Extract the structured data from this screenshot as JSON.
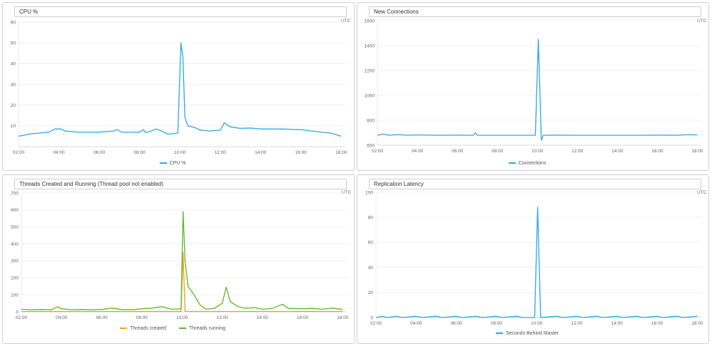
{
  "tz": "UTC",
  "charts": [
    {
      "id": "cpu",
      "title": "CPU %",
      "chart_data": {
        "type": "line",
        "x_ticks": [
          "02:00",
          "04:00",
          "06:00",
          "08:00",
          "10:00",
          "12:00",
          "14:00",
          "16:00",
          "18:00"
        ],
        "y_ticks": [
          "60",
          "50",
          "40",
          "30",
          "20",
          "10"
        ],
        "ylim": [
          0,
          60
        ],
        "xlim": [
          2,
          18.2
        ],
        "series": [
          {
            "name": "CPU %",
            "color": "#2aa8e6",
            "points": [
              [
                2.0,
                5.0
              ],
              [
                2.5,
                6.0
              ],
              [
                3.0,
                6.5
              ],
              [
                3.5,
                7.0
              ],
              [
                3.8,
                8.5
              ],
              [
                4.1,
                8.5
              ],
              [
                4.3,
                7.5
              ],
              [
                5.0,
                7.0
              ],
              [
                6.0,
                7.0
              ],
              [
                6.7,
                7.5
              ],
              [
                6.9,
                8.2
              ],
              [
                7.1,
                7.0
              ],
              [
                8.0,
                7.0
              ],
              [
                8.2,
                8.2
              ],
              [
                8.3,
                6.8
              ],
              [
                8.6,
                7.6
              ],
              [
                8.8,
                8.5
              ],
              [
                9.0,
                8.0
              ],
              [
                9.2,
                7.0
              ],
              [
                9.4,
                6.0
              ],
              [
                9.9,
                6.5
              ],
              [
                10.05,
                50.0
              ],
              [
                10.15,
                43.0
              ],
              [
                10.25,
                14.0
              ],
              [
                10.4,
                10.0
              ],
              [
                10.8,
                9.0
              ],
              [
                11.0,
                8.0
              ],
              [
                11.5,
                7.5
              ],
              [
                12.0,
                8.0
              ],
              [
                12.2,
                11.5
              ],
              [
                12.5,
                9.5
              ],
              [
                13.0,
                8.8
              ],
              [
                13.5,
                9.0
              ],
              [
                14.0,
                8.5
              ],
              [
                15.0,
                8.5
              ],
              [
                16.0,
                8.2
              ],
              [
                17.0,
                7.0
              ],
              [
                17.5,
                6.5
              ],
              [
                18.0,
                5.0
              ]
            ]
          }
        ]
      }
    },
    {
      "id": "conn",
      "title": "New Connections",
      "chart_data": {
        "type": "line",
        "x_ticks": [
          "02:00",
          "04:00",
          "06:00",
          "08:00",
          "10:00",
          "12:00",
          "14:00",
          "16:00",
          "18:00"
        ],
        "y_ticks": [
          "1600",
          "1400",
          "1200",
          "1000",
          "800",
          "600"
        ],
        "ylim": [
          600,
          1600
        ],
        "xlim": [
          2,
          18.2
        ],
        "series": [
          {
            "name": "Connections",
            "color": "#2aa8e6",
            "points": [
              [
                2.0,
                680
              ],
              [
                2.3,
                690
              ],
              [
                2.6,
                680
              ],
              [
                3.0,
                685
              ],
              [
                3.5,
                680
              ],
              [
                4.0,
                683
              ],
              [
                5.0,
                680
              ],
              [
                6.0,
                681
              ],
              [
                6.8,
                680
              ],
              [
                6.9,
                700
              ],
              [
                7.0,
                680
              ],
              [
                8.0,
                680
              ],
              [
                9.0,
                680
              ],
              [
                9.9,
                680
              ],
              [
                10.05,
                1450
              ],
              [
                10.2,
                640
              ],
              [
                10.3,
                680
              ],
              [
                11.0,
                681
              ],
              [
                12.0,
                680
              ],
              [
                13.0,
                680
              ],
              [
                14.0,
                680
              ],
              [
                15.0,
                680
              ],
              [
                16.0,
                681
              ],
              [
                17.0,
                680
              ],
              [
                17.5,
                685
              ],
              [
                18.0,
                683
              ]
            ]
          }
        ]
      }
    },
    {
      "id": "threads",
      "title": "Threads Created and Running (Thread pool not enabled)",
      "chart_data": {
        "type": "line",
        "x_ticks": [
          "02:00",
          "04:00",
          "06:00",
          "08:00",
          "10:00",
          "12:00",
          "14:00",
          "16:00",
          "18:00"
        ],
        "y_ticks": [
          "700",
          "600",
          "500",
          "400",
          "300",
          "200",
          "100",
          "0"
        ],
        "ylim": [
          0,
          700
        ],
        "xlim": [
          2,
          18.2
        ],
        "series": [
          {
            "name": "Threads created",
            "color": "#f0a30a",
            "points": [
              [
                2.0,
                2
              ],
              [
                4.0,
                2
              ],
              [
                6.0,
                2
              ],
              [
                8.0,
                2
              ],
              [
                9.95,
                2
              ],
              [
                10.05,
                350
              ],
              [
                10.15,
                2
              ],
              [
                12.0,
                2
              ],
              [
                14.0,
                2
              ],
              [
                16.0,
                2
              ],
              [
                18.0,
                2
              ]
            ]
          },
          {
            "name": "Threads running",
            "color": "#5cb82a",
            "points": [
              [
                2.0,
                15
              ],
              [
                2.5,
                12
              ],
              [
                3.0,
                14
              ],
              [
                3.5,
                12
              ],
              [
                3.8,
                30
              ],
              [
                4.0,
                18
              ],
              [
                4.5,
                12
              ],
              [
                5.0,
                14
              ],
              [
                5.5,
                12
              ],
              [
                6.0,
                14
              ],
              [
                6.5,
                22
              ],
              [
                7.0,
                14
              ],
              [
                7.5,
                12
              ],
              [
                8.0,
                18
              ],
              [
                8.5,
                22
              ],
              [
                9.0,
                30
              ],
              [
                9.5,
                15
              ],
              [
                9.95,
                18
              ],
              [
                10.05,
                590
              ],
              [
                10.15,
                300
              ],
              [
                10.3,
                150
              ],
              [
                10.6,
                100
              ],
              [
                10.9,
                40
              ],
              [
                11.2,
                15
              ],
              [
                11.6,
                20
              ],
              [
                12.0,
                50
              ],
              [
                12.2,
                145
              ],
              [
                12.4,
                60
              ],
              [
                12.8,
                30
              ],
              [
                13.2,
                20
              ],
              [
                13.6,
                25
              ],
              [
                14.0,
                15
              ],
              [
                14.5,
                20
              ],
              [
                15.0,
                45
              ],
              [
                15.3,
                20
              ],
              [
                16.0,
                18
              ],
              [
                16.5,
                20
              ],
              [
                17.0,
                15
              ],
              [
                17.5,
                22
              ],
              [
                18.0,
                14
              ]
            ]
          }
        ]
      }
    },
    {
      "id": "repl",
      "title": "Replication Latency",
      "chart_data": {
        "type": "line",
        "x_ticks": [
          "02:00",
          "04:00",
          "06:00",
          "08:00",
          "10:00",
          "12:00",
          "14:00",
          "16:00",
          "18:00"
        ],
        "y_ticks": [
          "100",
          "80",
          "60",
          "40",
          "20",
          "0"
        ],
        "ylim": [
          0,
          100
        ],
        "xlim": [
          2,
          18.2
        ],
        "series": [
          {
            "name": "Seconds Behind Master",
            "color": "#2aa8e6",
            "points": [
              [
                2.0,
                0
              ],
              [
                2.3,
                1
              ],
              [
                2.6,
                0
              ],
              [
                3.0,
                1
              ],
              [
                3.3,
                0
              ],
              [
                4.0,
                1
              ],
              [
                4.3,
                0
              ],
              [
                5.0,
                1
              ],
              [
                5.3,
                0
              ],
              [
                6.0,
                1
              ],
              [
                6.3,
                0
              ],
              [
                7.0,
                1
              ],
              [
                7.3,
                0
              ],
              [
                8.0,
                1
              ],
              [
                8.3,
                0
              ],
              [
                9.0,
                1
              ],
              [
                9.3,
                0
              ],
              [
                9.9,
                0
              ],
              [
                10.05,
                88
              ],
              [
                10.2,
                0
              ],
              [
                11.0,
                1
              ],
              [
                11.3,
                0
              ],
              [
                12.0,
                1
              ],
              [
                12.3,
                0
              ],
              [
                13.0,
                1
              ],
              [
                13.3,
                0
              ],
              [
                14.0,
                1
              ],
              [
                14.3,
                0
              ],
              [
                15.0,
                1
              ],
              [
                15.3,
                0
              ],
              [
                16.0,
                1
              ],
              [
                16.3,
                0
              ],
              [
                17.0,
                1
              ],
              [
                17.3,
                0
              ],
              [
                18.0,
                1
              ]
            ]
          }
        ]
      }
    }
  ]
}
